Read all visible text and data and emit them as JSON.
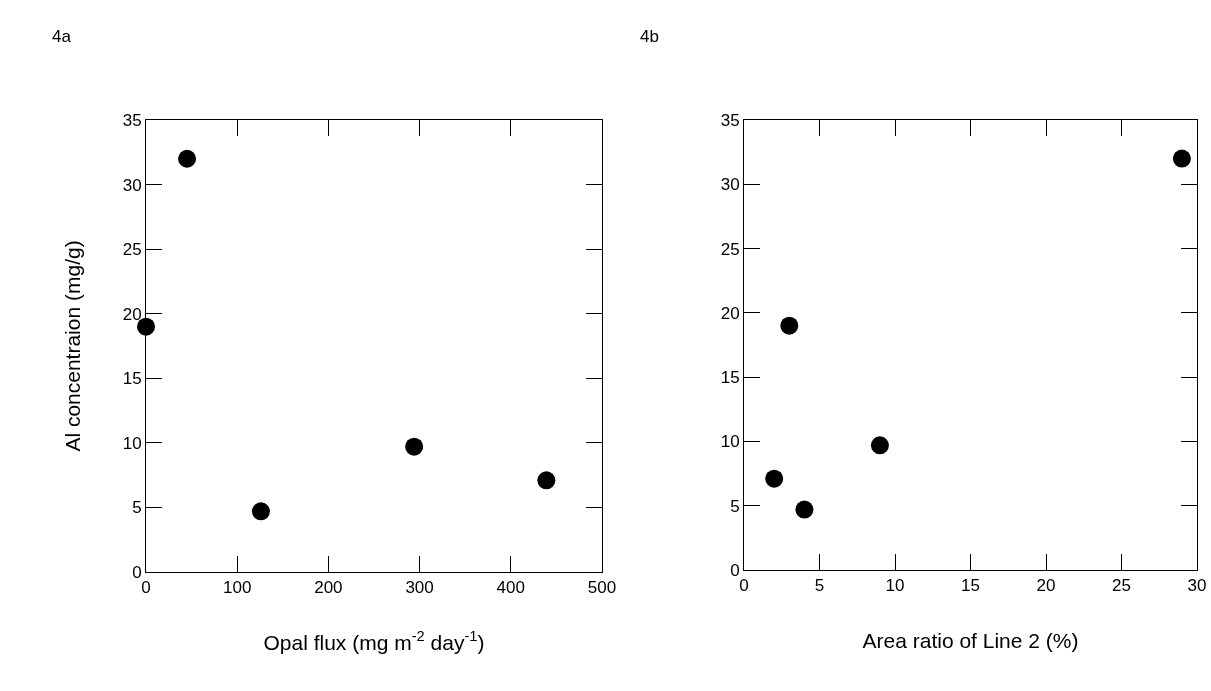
{
  "chart_data": [
    {
      "type": "scatter",
      "title": "4a",
      "xlabel": "Opal flux (mg m$^{-2}$ day$^{-1}$)",
      "ylabel": "Al concentraion (mg/g)",
      "x": [
        0,
        45,
        126,
        294,
        439
      ],
      "series": [
        {
          "color": "#000000",
          "values": [
            19,
            32,
            4.7,
            9.7,
            7.1
          ]
        }
      ],
      "xlim": [
        0,
        500
      ],
      "xticks": [
        0,
        100,
        200,
        300,
        400,
        500
      ],
      "ylim": [
        0,
        35
      ],
      "yticks": [
        0,
        5,
        10,
        15,
        20,
        25,
        30,
        35
      ],
      "grid": false,
      "marker": "circle"
    },
    {
      "type": "scatter",
      "title": "4b",
      "xlabel": "Area ratio of Line 2 (%)",
      "x": [
        3,
        29,
        4,
        9,
        2
      ],
      "series": [
        {
          "color": "#000000",
          "values": [
            19,
            32,
            4.7,
            9.7,
            7.1
          ]
        }
      ],
      "xlim": [
        0,
        30
      ],
      "xticks": [
        0,
        5,
        10,
        15,
        20,
        25,
        30
      ],
      "ylim": [
        0,
        35
      ],
      "yticks": [
        0,
        5,
        10,
        15,
        20,
        25,
        30,
        35
      ],
      "grid": false,
      "marker": "circle"
    }
  ]
}
